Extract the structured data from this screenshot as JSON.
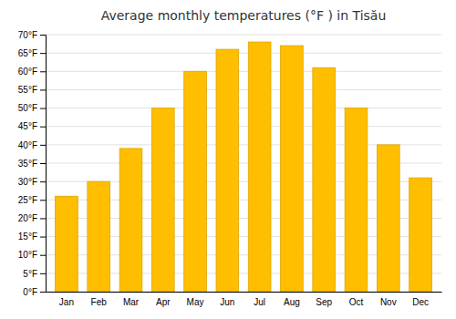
{
  "chart_data": {
    "type": "bar",
    "title": "Average monthly temperatures (°F ) in Tisău",
    "categories": [
      "Jan",
      "Feb",
      "Mar",
      "Apr",
      "May",
      "Jun",
      "Jul",
      "Aug",
      "Sep",
      "Oct",
      "Nov",
      "Dec"
    ],
    "values": [
      26,
      30,
      39,
      50,
      60,
      66,
      68,
      67,
      61,
      50,
      40,
      31
    ],
    "color": "#FFBE00",
    "ylim": [
      0,
      70
    ],
    "yticks": [
      {
        "value": 0,
        "label": "0°F"
      },
      {
        "value": 5,
        "label": "5°F"
      },
      {
        "value": 10,
        "label": "10°F"
      },
      {
        "value": 15,
        "label": "15°F"
      },
      {
        "value": 20,
        "label": "20°F"
      },
      {
        "value": 25,
        "label": "25°F"
      },
      {
        "value": 30,
        "label": "30°F"
      },
      {
        "value": 35,
        "label": "35°F"
      },
      {
        "value": 40,
        "label": "40°F"
      },
      {
        "value": 45,
        "label": "45°F"
      },
      {
        "value": 50,
        "label": "50°F"
      },
      {
        "value": 55,
        "label": "55°F"
      },
      {
        "value": 60,
        "label": "60°F"
      },
      {
        "value": 65,
        "label": "65°F"
      },
      {
        "value": 70,
        "label": "70°F"
      }
    ],
    "grid": true
  }
}
